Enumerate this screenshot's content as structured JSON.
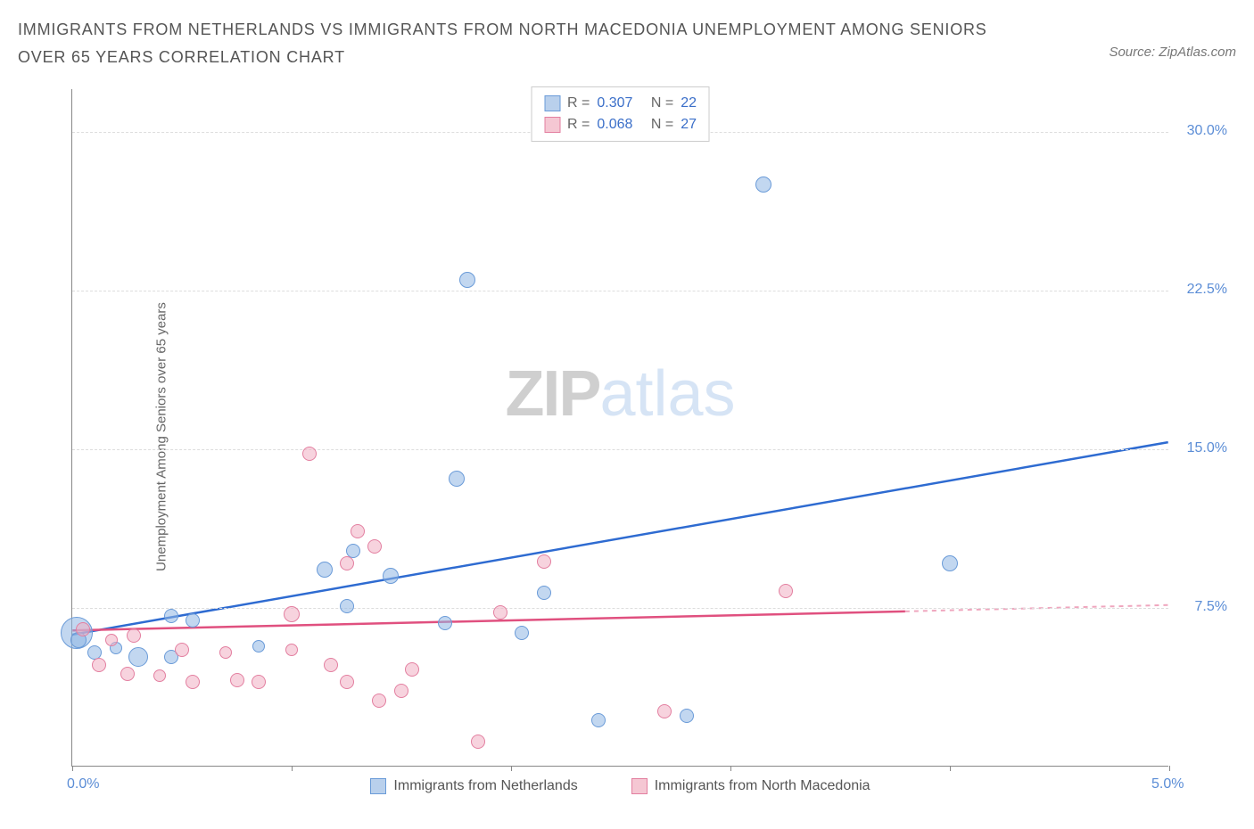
{
  "header": {
    "title": "IMMIGRANTS FROM NETHERLANDS VS IMMIGRANTS FROM NORTH MACEDONIA UNEMPLOYMENT AMONG SENIORS OVER 65 YEARS CORRELATION CHART",
    "source": "Source: ZipAtlas.com"
  },
  "chart": {
    "type": "scatter",
    "ylabel": "Unemployment Among Seniors over 65 years",
    "background_color": "#ffffff",
    "grid_color": "#dddddd",
    "axis_color": "#888888",
    "tick_label_color": "#5b8dd6",
    "xlim": [
      0,
      5
    ],
    "ylim": [
      0,
      32
    ],
    "xticks": [
      0,
      1,
      2,
      3,
      4,
      5
    ],
    "xtick_labels": {
      "0": "0.0%",
      "5": "5.0%"
    },
    "yticks": [
      7.5,
      15,
      22.5,
      30
    ],
    "ytick_labels": [
      "7.5%",
      "15.0%",
      "22.5%",
      "30.0%"
    ],
    "watermark": {
      "part1": "ZIP",
      "part2": "atlas"
    },
    "legend_top": [
      {
        "swatch_fill": "#b9d0ec",
        "swatch_border": "#6a9bd8",
        "r_label": "R =",
        "r": "0.307",
        "n_label": "N =",
        "n": "22"
      },
      {
        "swatch_fill": "#f5c7d3",
        "swatch_border": "#e37fa0",
        "r_label": "R =",
        "r": "0.068",
        "n_label": "N =",
        "n": "27"
      }
    ],
    "legend_bottom": [
      {
        "swatch_fill": "#b9d0ec",
        "swatch_border": "#6a9bd8",
        "label": "Immigrants from Netherlands"
      },
      {
        "swatch_fill": "#f5c7d3",
        "swatch_border": "#e37fa0",
        "label": "Immigrants from North Macedonia"
      }
    ],
    "series": [
      {
        "name": "netherlands",
        "fill": "rgba(143,182,227,0.55)",
        "stroke": "#6a9bd8",
        "trend_color": "#2e6bd1",
        "trend": {
          "x1": 0,
          "y1": 6.2,
          "x2": 5,
          "y2": 15.3
        },
        "points": [
          {
            "x": 0.02,
            "y": 6.3,
            "r": 18
          },
          {
            "x": 0.03,
            "y": 6.0,
            "r": 9
          },
          {
            "x": 0.1,
            "y": 5.4,
            "r": 8
          },
          {
            "x": 0.2,
            "y": 5.6,
            "r": 7
          },
          {
            "x": 0.3,
            "y": 5.2,
            "r": 11
          },
          {
            "x": 0.45,
            "y": 5.2,
            "r": 8
          },
          {
            "x": 0.45,
            "y": 7.1,
            "r": 8
          },
          {
            "x": 0.55,
            "y": 6.9,
            "r": 8
          },
          {
            "x": 0.85,
            "y": 5.7,
            "r": 7
          },
          {
            "x": 1.15,
            "y": 9.3,
            "r": 9
          },
          {
            "x": 1.25,
            "y": 7.6,
            "r": 8
          },
          {
            "x": 1.28,
            "y": 10.2,
            "r": 8
          },
          {
            "x": 1.45,
            "y": 9.0,
            "r": 9
          },
          {
            "x": 1.7,
            "y": 6.8,
            "r": 8
          },
          {
            "x": 1.75,
            "y": 13.6,
            "r": 9
          },
          {
            "x": 1.8,
            "y": 23.0,
            "r": 9
          },
          {
            "x": 2.05,
            "y": 6.3,
            "r": 8
          },
          {
            "x": 2.15,
            "y": 8.2,
            "r": 8
          },
          {
            "x": 2.4,
            "y": 2.2,
            "r": 8
          },
          {
            "x": 2.8,
            "y": 2.4,
            "r": 8
          },
          {
            "x": 3.15,
            "y": 27.5,
            "r": 9
          },
          {
            "x": 4.0,
            "y": 9.6,
            "r": 9
          }
        ]
      },
      {
        "name": "macedonia",
        "fill": "rgba(240,175,195,0.55)",
        "stroke": "#e37fa0",
        "trend_color": "#e0507f",
        "trend": {
          "x1": 0,
          "y1": 6.4,
          "x2": 3.8,
          "y2": 7.3,
          "x2_dash": 5,
          "y2_dash": 7.6
        },
        "points": [
          {
            "x": 0.05,
            "y": 6.5,
            "r": 8
          },
          {
            "x": 0.12,
            "y": 4.8,
            "r": 8
          },
          {
            "x": 0.18,
            "y": 6.0,
            "r": 7
          },
          {
            "x": 0.25,
            "y": 4.4,
            "r": 8
          },
          {
            "x": 0.28,
            "y": 6.2,
            "r": 8
          },
          {
            "x": 0.4,
            "y": 4.3,
            "r": 7
          },
          {
            "x": 0.5,
            "y": 5.5,
            "r": 8
          },
          {
            "x": 0.55,
            "y": 4.0,
            "r": 8
          },
          {
            "x": 0.7,
            "y": 5.4,
            "r": 7
          },
          {
            "x": 0.75,
            "y": 4.1,
            "r": 8
          },
          {
            "x": 0.85,
            "y": 4.0,
            "r": 8
          },
          {
            "x": 1.0,
            "y": 7.2,
            "r": 9
          },
          {
            "x": 1.0,
            "y": 5.5,
            "r": 7
          },
          {
            "x": 1.08,
            "y": 14.8,
            "r": 8
          },
          {
            "x": 1.18,
            "y": 4.8,
            "r": 8
          },
          {
            "x": 1.25,
            "y": 4.0,
            "r": 8
          },
          {
            "x": 1.25,
            "y": 9.6,
            "r": 8
          },
          {
            "x": 1.3,
            "y": 11.1,
            "r": 8
          },
          {
            "x": 1.38,
            "y": 10.4,
            "r": 8
          },
          {
            "x": 1.4,
            "y": 3.1,
            "r": 8
          },
          {
            "x": 1.5,
            "y": 3.6,
            "r": 8
          },
          {
            "x": 1.55,
            "y": 4.6,
            "r": 8
          },
          {
            "x": 1.85,
            "y": 1.2,
            "r": 8
          },
          {
            "x": 1.95,
            "y": 7.3,
            "r": 8
          },
          {
            "x": 2.15,
            "y": 9.7,
            "r": 8
          },
          {
            "x": 2.7,
            "y": 2.6,
            "r": 8
          },
          {
            "x": 3.25,
            "y": 8.3,
            "r": 8
          }
        ]
      }
    ]
  }
}
